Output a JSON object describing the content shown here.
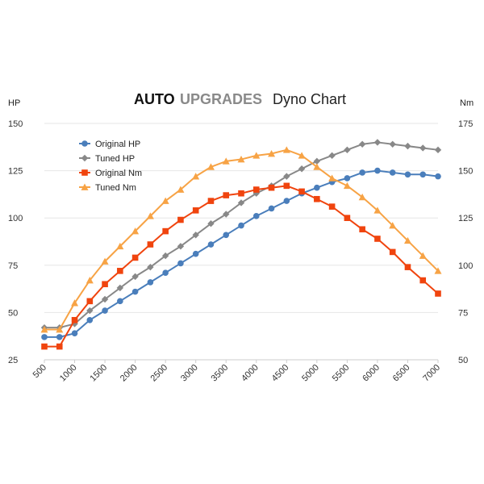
{
  "chart_data": {
    "type": "line",
    "title_part1": "AUTO",
    "title_part2": "UPGRADES",
    "subtitle": "Dyno Chart",
    "ylabel_left": "HP",
    "ylabel_right": "Nm",
    "x": [
      500,
      750,
      1000,
      1250,
      1500,
      1750,
      2000,
      2250,
      2500,
      2750,
      3000,
      3250,
      3500,
      3750,
      4000,
      4250,
      4500,
      4750,
      5000,
      5250,
      5500,
      5750,
      6000,
      6250,
      6500,
      6750,
      7000
    ],
    "xticks": [
      "500",
      "1000",
      "1500",
      "2000",
      "2500",
      "3000",
      "3500",
      "4000",
      "4500",
      "5000",
      "5500",
      "6000",
      "6500",
      "7000"
    ],
    "xlim": [
      500,
      7000
    ],
    "ylim_left": [
      25,
      150
    ],
    "ylim_right": [
      50,
      175
    ],
    "yticks_left": [
      "25",
      "50",
      "75",
      "100",
      "125",
      "150"
    ],
    "yticks_right": [
      "50",
      "75",
      "100",
      "125",
      "150",
      "175"
    ],
    "grid": true,
    "legend_position": "top-left",
    "series": [
      {
        "name": "Original HP",
        "axis": "left",
        "marker": "circle",
        "color": "#4a7ebb",
        "values": [
          37,
          37,
          39,
          46,
          51,
          56,
          61,
          66,
          71,
          76,
          81,
          86,
          91,
          96,
          101,
          105,
          109,
          113,
          116,
          119,
          121,
          124,
          125,
          124,
          123,
          123,
          122
        ]
      },
      {
        "name": "Tuned HP",
        "axis": "left",
        "marker": "diamond",
        "color": "#888888",
        "values": [
          42,
          42,
          44,
          51,
          57,
          63,
          69,
          74,
          80,
          85,
          91,
          97,
          102,
          108,
          113,
          117,
          122,
          126,
          130,
          133,
          136,
          139,
          140,
          139,
          138,
          137,
          136
        ]
      },
      {
        "name": "Original Nm",
        "axis": "right",
        "marker": "square",
        "color": "#f0440e",
        "values": [
          57,
          57,
          71,
          81,
          90,
          97,
          104,
          111,
          118,
          124,
          129,
          134,
          137,
          138,
          140,
          141,
          142,
          139,
          135,
          131,
          125,
          119,
          114,
          107,
          99,
          92,
          85
        ]
      },
      {
        "name": "Tuned Nm",
        "axis": "right",
        "marker": "triangle",
        "color": "#f7a345",
        "values": [
          66,
          66,
          80,
          92,
          102,
          110,
          118,
          126,
          134,
          140,
          147,
          152,
          155,
          156,
          158,
          159,
          161,
          158,
          152,
          146,
          142,
          136,
          129,
          121,
          113,
          105,
          97
        ]
      }
    ]
  },
  "colors": {
    "brand_dark": "#111111",
    "brand_light": "#8a8a8a",
    "axis": "#cccccc",
    "grid": "#e6e6e6"
  }
}
